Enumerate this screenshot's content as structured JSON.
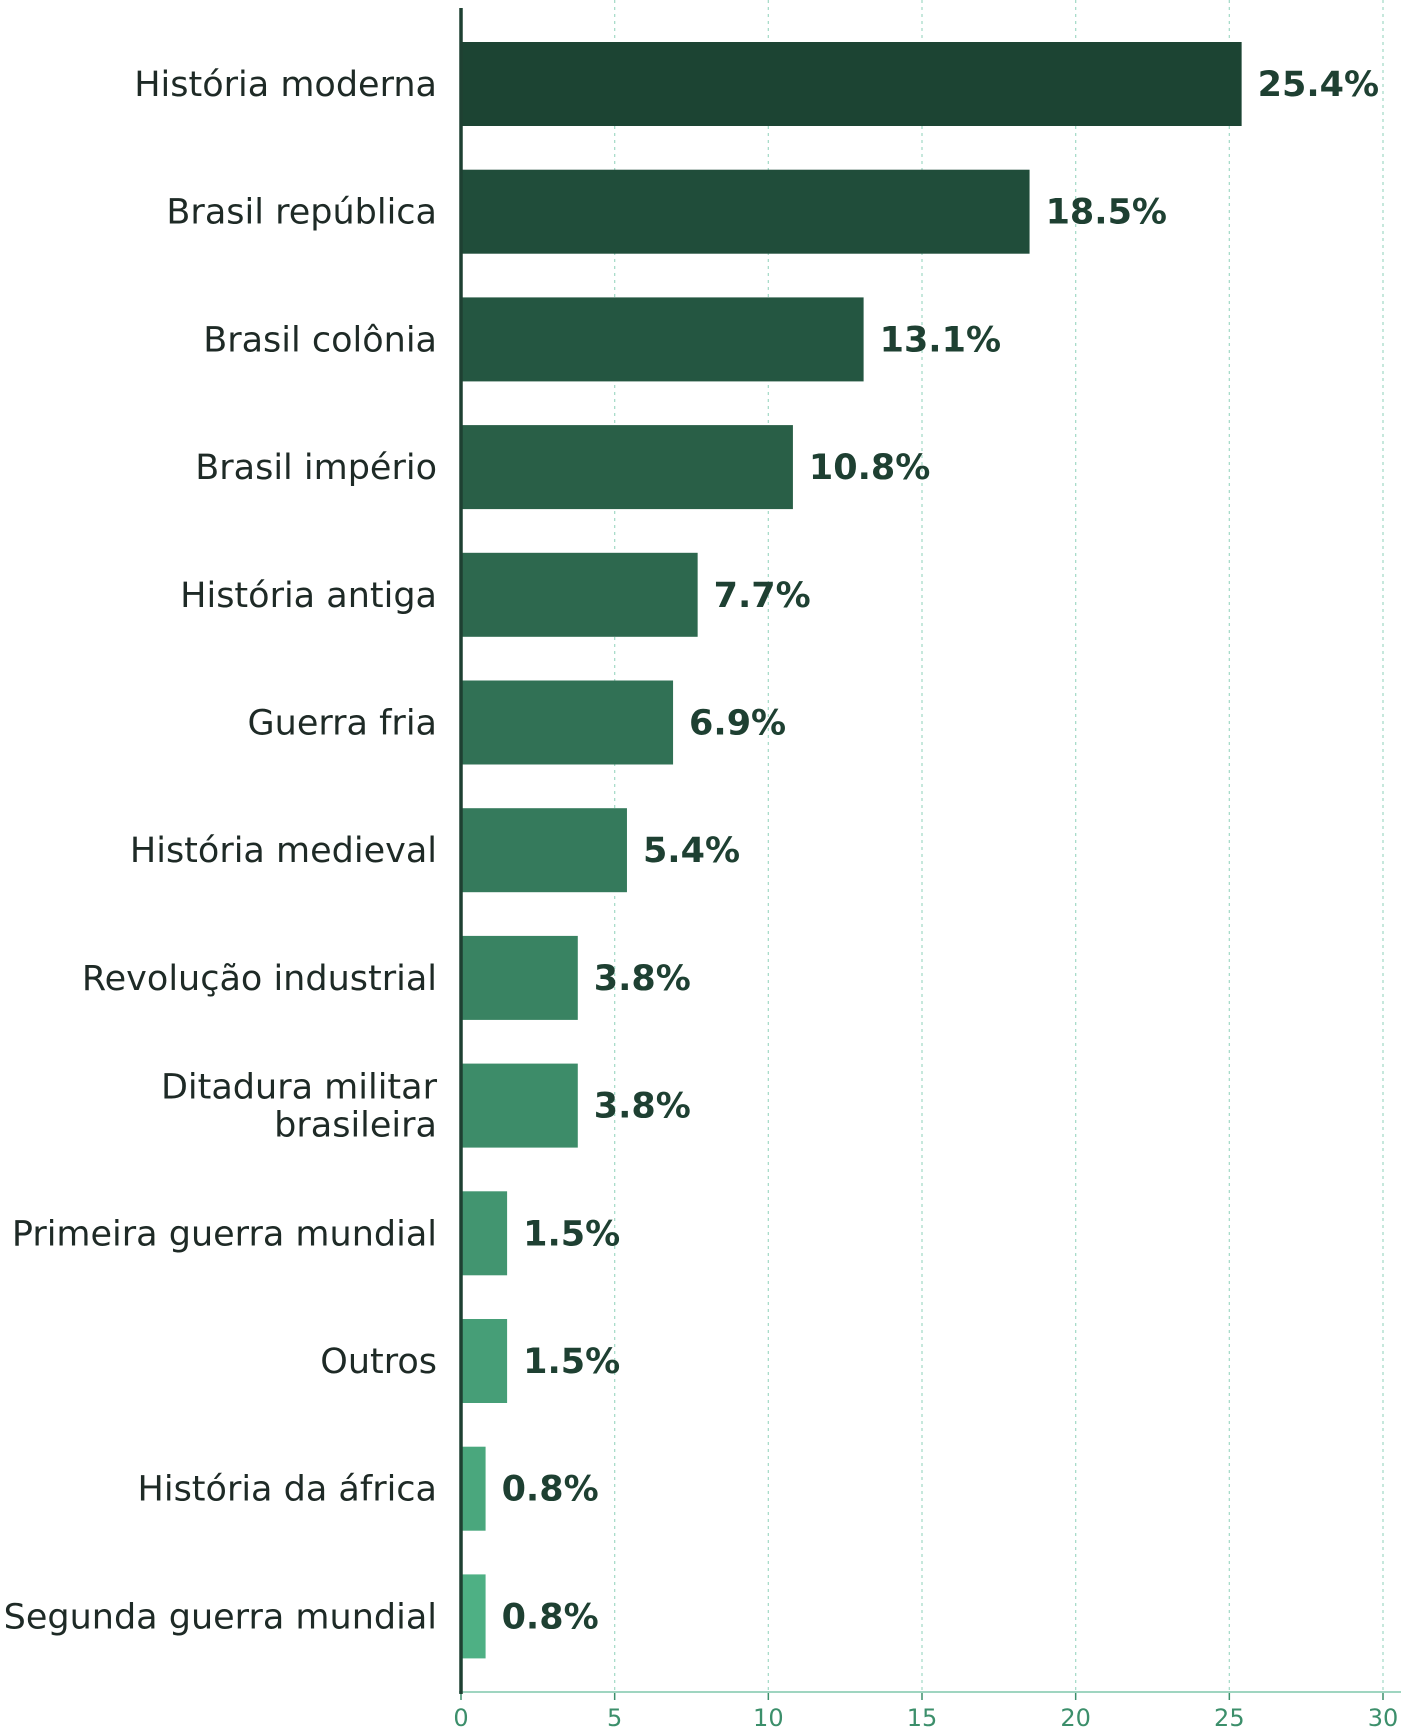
{
  "chart_data": {
    "type": "bar",
    "orientation": "horizontal",
    "title": "",
    "xlabel": "",
    "ylabel": "",
    "xlim": [
      0,
      30
    ],
    "x_ticks": [
      0,
      5,
      10,
      15,
      20,
      25,
      30
    ],
    "grid": true,
    "legend": false,
    "value_format": "percent_one_decimal",
    "categories": [
      [
        "História moderna"
      ],
      [
        "Brasil república"
      ],
      [
        "Brasil colônia"
      ],
      [
        "Brasil império"
      ],
      [
        "História antiga"
      ],
      [
        "Guerra fria"
      ],
      [
        "História medieval"
      ],
      [
        "Revolução industrial"
      ],
      [
        "Ditadura militar",
        "brasileira"
      ],
      [
        "Primeira guerra mundial"
      ],
      [
        "Outros"
      ],
      [
        "História da áfrica"
      ],
      [
        "Segunda guerra mundial"
      ]
    ],
    "values": [
      25.4,
      18.5,
      13.1,
      10.8,
      7.7,
      6.9,
      5.4,
      3.8,
      3.8,
      1.5,
      1.5,
      0.8,
      0.8
    ],
    "value_labels": [
      "25.4%",
      "18.5%",
      "13.1%",
      "10.8%",
      "7.7%",
      "6.9%",
      "5.4%",
      "3.8%",
      "3.8%",
      "1.5%",
      "1.5%",
      "0.8%",
      "0.8%"
    ],
    "colors": {
      "darkest_bar": "#1c4433",
      "lightest_bar": "#4eb084",
      "value_label": "#1e4032",
      "category_label": "#1e2a26",
      "tick_label": "#3c8f6b",
      "gridline": "#a8dcc9",
      "axis": "#1e4032"
    }
  }
}
